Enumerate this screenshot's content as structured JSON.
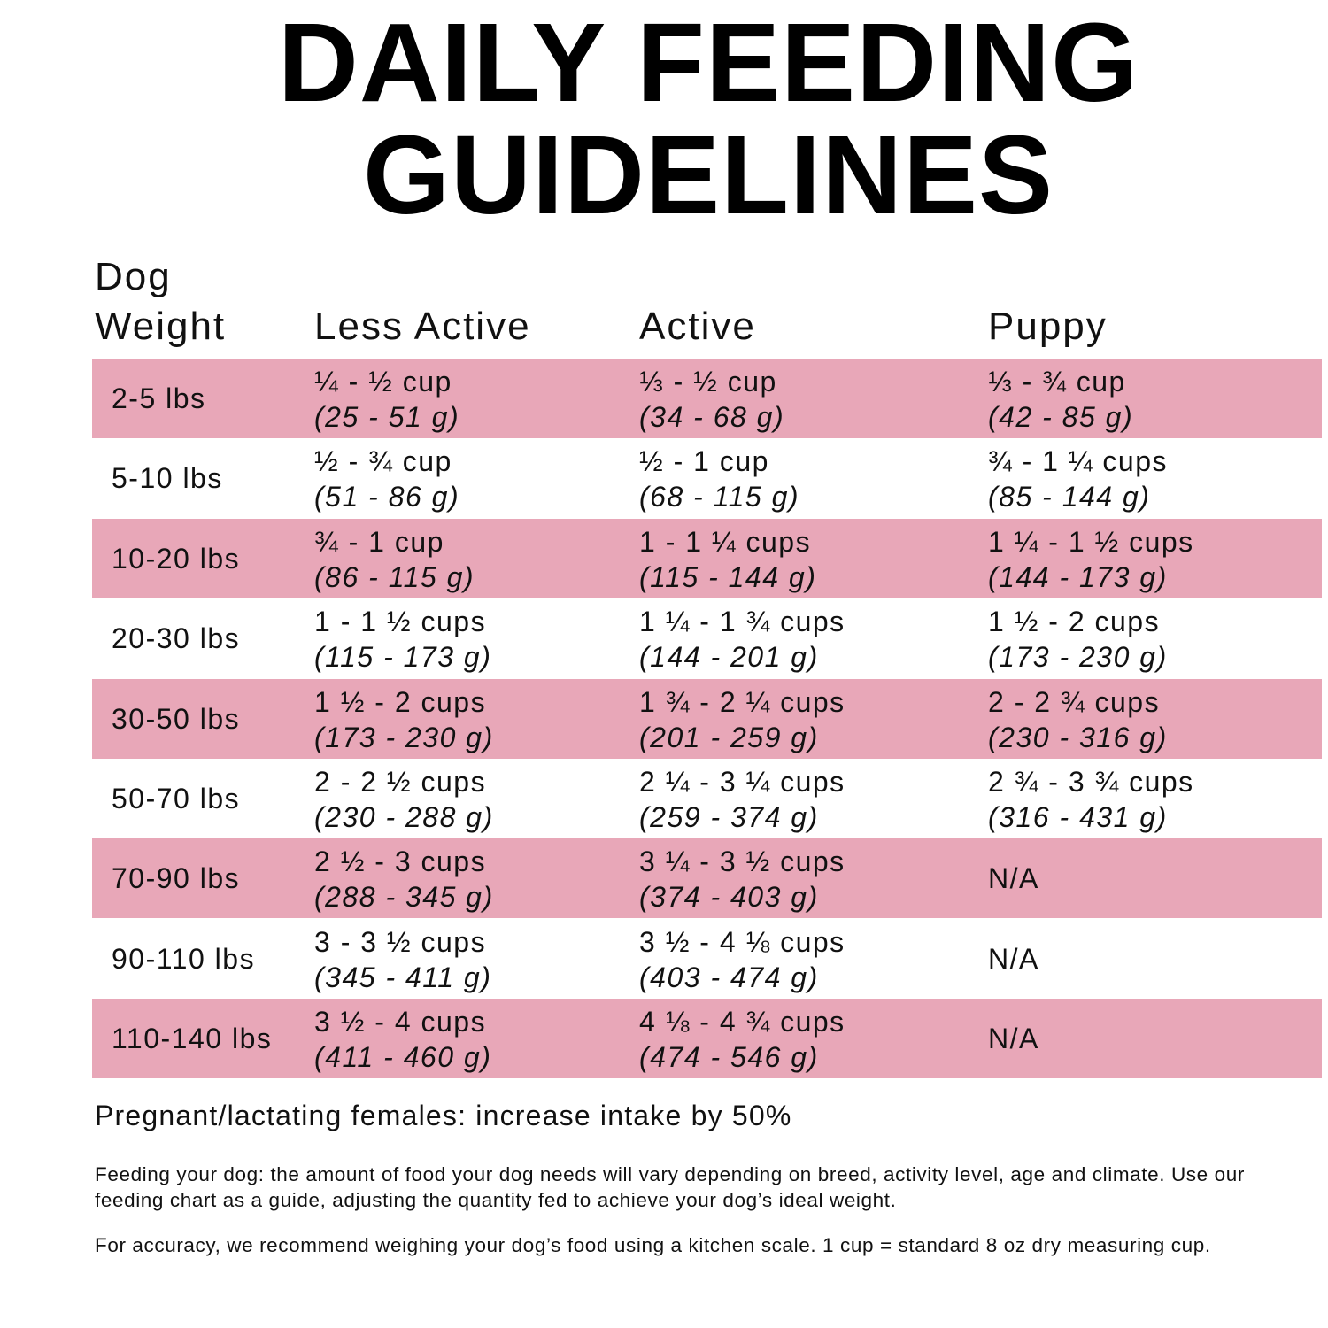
{
  "title": {
    "lines": [
      "DAILY FEEDING",
      "GUIDELINES"
    ]
  },
  "table": {
    "weight_header": [
      "Dog",
      "Weight"
    ],
    "columns": [
      "Less Active",
      "Active",
      "Puppy"
    ],
    "rows": [
      {
        "weight": "2-5 lbs",
        "cells": [
          {
            "cups": "¼ - ½ cup",
            "grams": "(25 - 51 g)"
          },
          {
            "cups": "⅓ - ½ cup",
            "grams": "(34 - 68 g)"
          },
          {
            "cups": "⅓ - ¾ cup",
            "grams": "(42 - 85 g)"
          }
        ]
      },
      {
        "weight": "5-10 lbs",
        "cells": [
          {
            "cups": "½ - ¾ cup",
            "grams": "(51 - 86 g)"
          },
          {
            "cups": "½ - 1 cup",
            "grams": "(68 - 115 g)"
          },
          {
            "cups": "¾ - 1 ¼ cups",
            "grams": "(85 - 144 g)"
          }
        ]
      },
      {
        "weight": "10-20 lbs",
        "cells": [
          {
            "cups": "¾ - 1 cup",
            "grams": "(86 - 115 g)"
          },
          {
            "cups": "1 - 1 ¼ cups",
            "grams": "(115 - 144 g)"
          },
          {
            "cups": "1 ¼ - 1 ½ cups",
            "grams": "(144 - 173 g)"
          }
        ]
      },
      {
        "weight": "20-30 lbs",
        "cells": [
          {
            "cups": "1 - 1 ½ cups",
            "grams": "(115 - 173 g)"
          },
          {
            "cups": "1 ¼ - 1 ¾ cups",
            "grams": "(144 - 201 g)"
          },
          {
            "cups": "1 ½ - 2 cups",
            "grams": "(173 - 230 g)"
          }
        ]
      },
      {
        "weight": "30-50 lbs",
        "cells": [
          {
            "cups": "1 ½ - 2 cups",
            "grams": "(173 - 230 g)"
          },
          {
            "cups": "1 ¾ - 2 ¼ cups",
            "grams": "(201 - 259 g)"
          },
          {
            "cups": "2 - 2 ¾ cups",
            "grams": "(230 - 316 g)"
          }
        ]
      },
      {
        "weight": "50-70 lbs",
        "cells": [
          {
            "cups": "2 - 2 ½ cups",
            "grams": "(230 - 288 g)"
          },
          {
            "cups": "2 ¼ - 3 ¼ cups",
            "grams": "(259 - 374 g)"
          },
          {
            "cups": "2 ¾ - 3 ¾ cups",
            "grams": "(316 - 431 g)"
          }
        ]
      },
      {
        "weight": "70-90 lbs",
        "cells": [
          {
            "cups": "2 ½ - 3 cups",
            "grams": "(288 - 345 g)"
          },
          {
            "cups": "3 ¼ - 3 ½ cups",
            "grams": "(374 - 403 g)"
          },
          {
            "cups": "N/A"
          }
        ]
      },
      {
        "weight": "90-110 lbs",
        "cells": [
          {
            "cups": "3 - 3 ½ cups",
            "grams": "(345 - 411 g)"
          },
          {
            "cups": "3 ½ - 4 ⅛ cups",
            "grams": "(403 - 474 g)"
          },
          {
            "cups": "N/A"
          }
        ]
      },
      {
        "weight": "110-140 lbs",
        "cells": [
          {
            "cups": "3 ½ - 4 cups",
            "grams": "(411 - 460 g)"
          },
          {
            "cups": "4 ⅛ - 4 ¾ cups",
            "grams": "(474 - 546 g)"
          },
          {
            "cups": "N/A"
          }
        ]
      }
    ]
  },
  "notes": {
    "pregnant": "Pregnant/lactating females: increase intake by 50%",
    "paragraphs": [
      "Feeding your dog: the amount of food your dog needs will vary depending on breed, activity level, age and climate. Use our feeding chart as a guide, adjusting the quantity fed to achieve your dog’s ideal weight.",
      "For accuracy, we recommend weighing your dog’s food using a kitchen scale. 1 cup = standard 8 oz dry measuring cup."
    ]
  }
}
